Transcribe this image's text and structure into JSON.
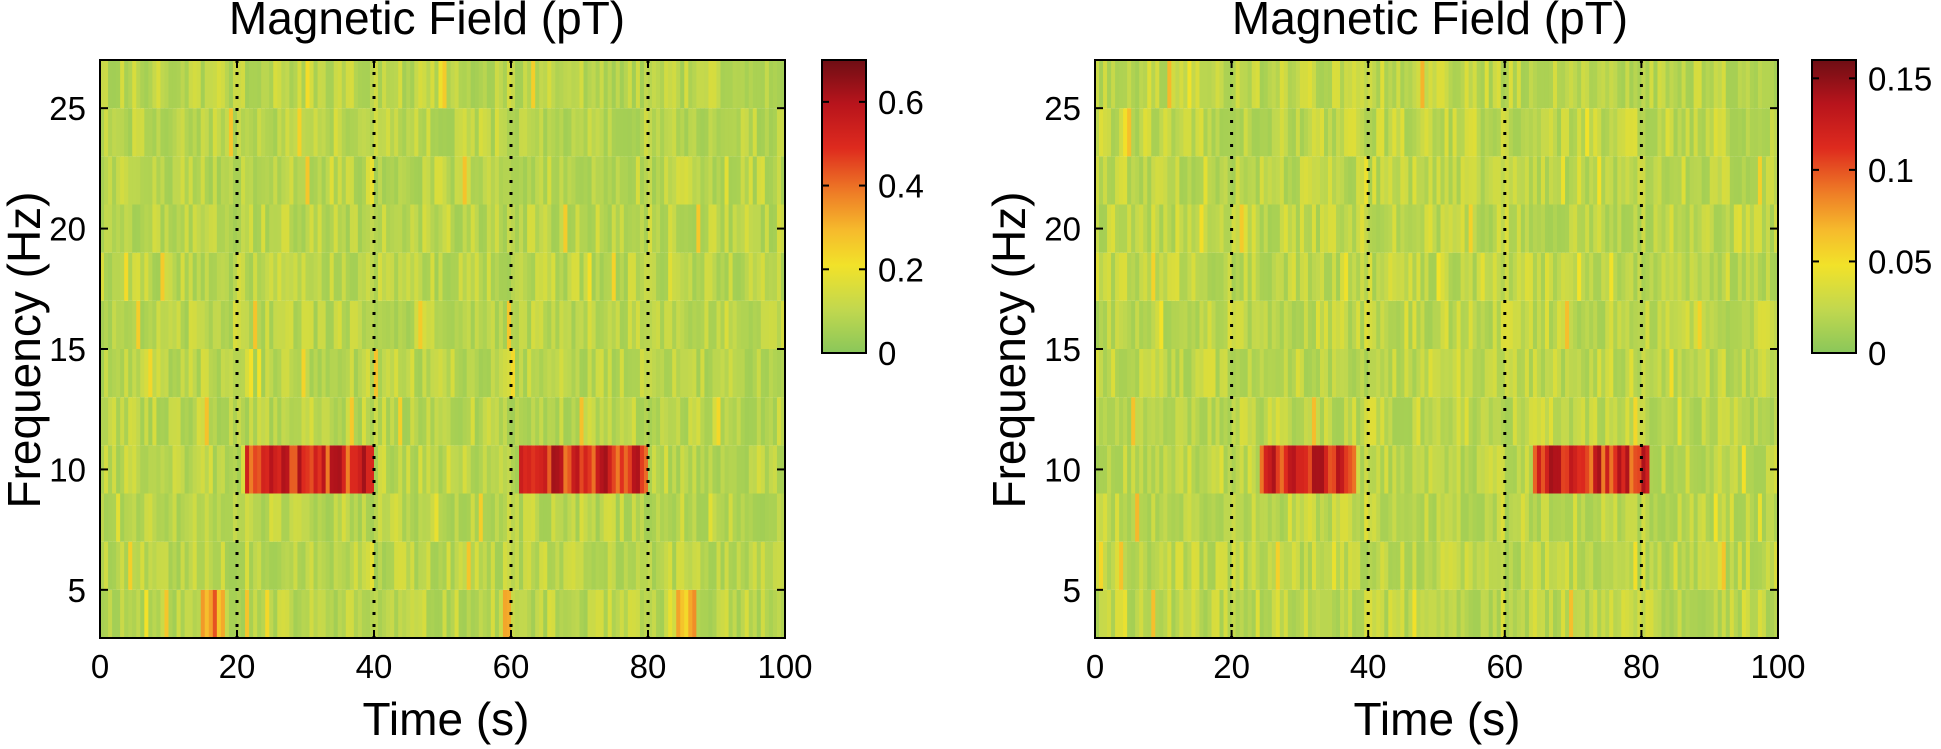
{
  "chart_data": [
    {
      "type": "heatmap",
      "title": "Magnetic Field (pT)",
      "xlabel": "Time (s)",
      "ylabel": "Frequency (Hz)",
      "xlim": [
        0,
        100
      ],
      "ylim": [
        3,
        27
      ],
      "x_ticks": [
        0,
        20,
        40,
        60,
        80,
        100
      ],
      "y_ticks": [
        5,
        10,
        15,
        20,
        25
      ],
      "frequency_bins_hz": [
        4,
        6,
        8,
        10,
        12,
        14,
        16,
        18,
        20,
        22,
        24,
        26
      ],
      "vertical_markers_s": [
        20,
        40,
        60,
        80
      ],
      "colorbar": {
        "min": 0,
        "max": 0.7,
        "ticks": [
          0,
          0.2,
          0.4,
          0.6
        ],
        "tick_labels": [
          "0",
          "0.2",
          "0.4",
          "0.6"
        ]
      },
      "highlights": [
        {
          "freq_hz": 10,
          "t_start": 21,
          "t_end": 40,
          "value": 0.5
        },
        {
          "freq_hz": 10,
          "t_start": 61,
          "t_end": 80,
          "value": 0.5
        },
        {
          "freq_hz": 4,
          "t_start": 15,
          "t_end": 18,
          "value": 0.35
        },
        {
          "freq_hz": 4,
          "t_start": 84,
          "t_end": 87,
          "value": 0.3
        },
        {
          "freq_hz": 4,
          "t_start": 59,
          "t_end": 60,
          "value": 0.3
        }
      ],
      "background_level": 0.1
    },
    {
      "type": "heatmap",
      "title": "Magnetic Field (pT)",
      "xlabel": "Time (s)",
      "ylabel": "Frequency (Hz)",
      "xlim": [
        0,
        100
      ],
      "ylim": [
        3,
        27
      ],
      "x_ticks": [
        0,
        20,
        40,
        60,
        80,
        100
      ],
      "y_ticks": [
        5,
        10,
        15,
        20,
        25
      ],
      "frequency_bins_hz": [
        4,
        6,
        8,
        10,
        12,
        14,
        16,
        18,
        20,
        22,
        24,
        26
      ],
      "vertical_markers_s": [
        20,
        40,
        60,
        80
      ],
      "colorbar": {
        "min": 0,
        "max": 0.16,
        "ticks": [
          0,
          0.05,
          0.1,
          0.15
        ],
        "tick_labels": [
          "0",
          "0.05",
          "0.1",
          "0.15"
        ]
      },
      "highlights": [
        {
          "freq_hz": 10,
          "t_start": 24,
          "t_end": 38,
          "value": 0.115
        },
        {
          "freq_hz": 10,
          "t_start": 64,
          "t_end": 81,
          "value": 0.115
        }
      ],
      "background_level": 0.025
    }
  ]
}
